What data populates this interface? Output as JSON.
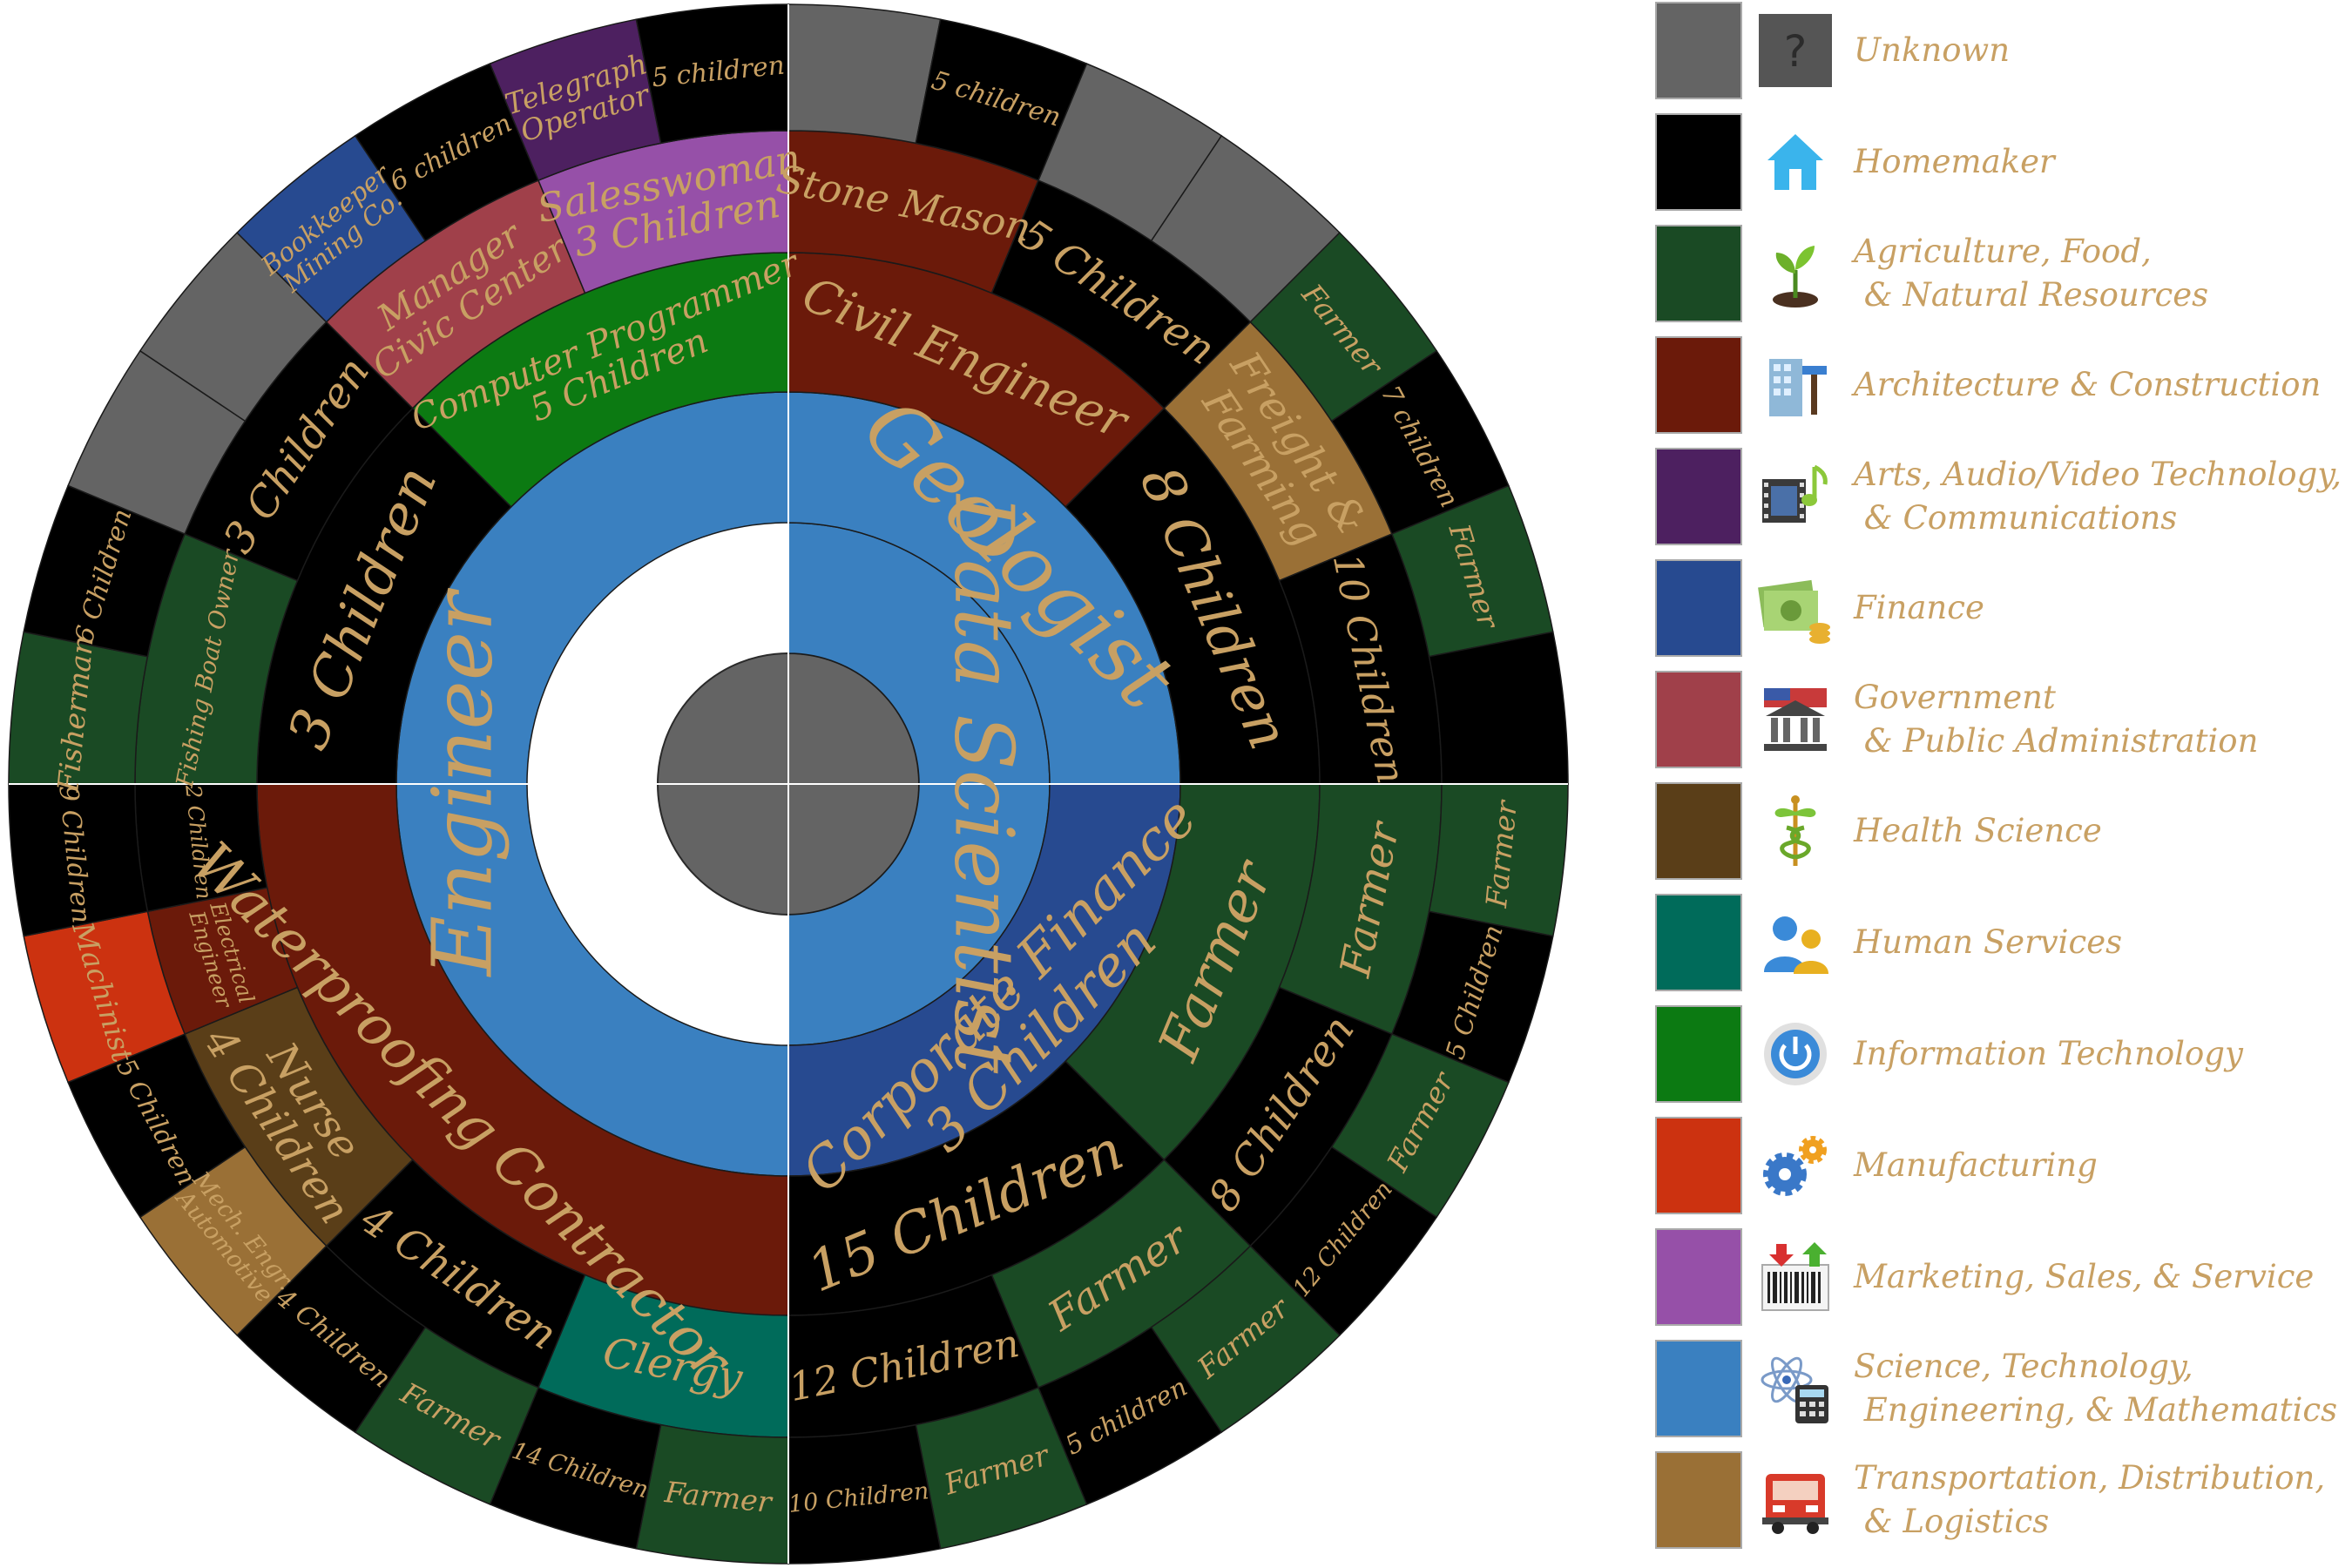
{
  "colors": {
    "unknown": "#646464",
    "homemaker": "#000000",
    "agriculture": "#1a4a24",
    "architecture": "#6b1a0a",
    "arts": "#4d2060",
    "finance": "#274a90",
    "government": "#a0404a",
    "health": "#5a3e18",
    "human": "#006b5a",
    "it": "#0c7a12",
    "manufacturing": "#cc3210",
    "marketing": "#9650a8",
    "stem": "#3a80c0",
    "transport": "#9a7036",
    "text": "#c8a063",
    "center": "#646464"
  },
  "legend": [
    {
      "key": "unknown",
      "label": "Unknown",
      "icon": "question-mark-icon"
    },
    {
      "key": "homemaker",
      "label": "Homemaker",
      "icon": "house-icon"
    },
    {
      "key": "agriculture",
      "label": "Agriculture, Food,\n & Natural Resources",
      "icon": "sprout-icon"
    },
    {
      "key": "architecture",
      "label": "Architecture & Construction",
      "icon": "building-hammer-icon"
    },
    {
      "key": "arts",
      "label": "Arts, Audio/Video Technology,\n & Communications",
      "icon": "film-music-icon"
    },
    {
      "key": "finance",
      "label": "Finance",
      "icon": "money-icon"
    },
    {
      "key": "government",
      "label": "Government\n & Public Administration",
      "icon": "capitol-icon"
    },
    {
      "key": "health",
      "label": "Health Science",
      "icon": "caduceus-icon"
    },
    {
      "key": "human",
      "label": "Human Services",
      "icon": "people-icon"
    },
    {
      "key": "it",
      "label": "Information Technology",
      "icon": "power-button-icon"
    },
    {
      "key": "manufacturing",
      "label": "Manufacturing",
      "icon": "gears-icon"
    },
    {
      "key": "marketing",
      "label": "Marketing, Sales, & Service",
      "icon": "barcode-icon"
    },
    {
      "key": "stem",
      "label": "Science, Technology,\n Engineering, & Mathematics",
      "icon": "atom-calculator-icon"
    },
    {
      "key": "transport",
      "label": "Transportation, Distribution,\n & Logistics",
      "icon": "truck-icon"
    }
  ],
  "chart_data": {
    "type": "sunburst",
    "rings": [
      {
        "level": 1,
        "segments": [
          {
            "label": "Data Scientist",
            "category": "stem",
            "start": 270,
            "end": 450
          }
        ]
      },
      {
        "level": 2,
        "segments": [
          {
            "label": "Geologist",
            "category": "stem",
            "start": 270,
            "end": 360
          },
          {
            "label": "Corporate Finance\n3 Children",
            "category": "finance",
            "start": 0,
            "end": 90
          },
          {
            "label": "Engineer",
            "category": "stem",
            "start": 90,
            "end": 270
          }
        ]
      },
      {
        "level": 3,
        "segments": [
          {
            "label": "Civil Engineer",
            "category": "architecture",
            "start": 270,
            "end": 315
          },
          {
            "label": "8 Children",
            "category": "homemaker",
            "start": 315,
            "end": 360
          },
          {
            "label": "Farmer",
            "category": "agriculture",
            "start": 0,
            "end": 45
          },
          {
            "label": "15 Children",
            "category": "homemaker",
            "start": 45,
            "end": 90
          },
          {
            "label": "Waterproofing Contractor",
            "category": "architecture",
            "start": 90,
            "end": 180
          },
          {
            "label": "3 Children",
            "category": "homemaker",
            "start": 180,
            "end": 225
          },
          {
            "label": "Computer Programmer\n5 Children",
            "category": "it",
            "start": 225,
            "end": 270
          }
        ]
      },
      {
        "level": 4,
        "segments": [
          {
            "label": "Stone Mason",
            "category": "architecture",
            "start": 270,
            "end": 292.5
          },
          {
            "label": "5 Children",
            "category": "homemaker",
            "start": 292.5,
            "end": 315
          },
          {
            "label": "Freight &\nFarming",
            "category": "transport",
            "start": 315,
            "end": 337.5
          },
          {
            "label": "10 Children",
            "category": "homemaker",
            "start": 337.5,
            "end": 360
          },
          {
            "label": "Farmer",
            "category": "agriculture",
            "start": 0,
            "end": 22.5
          },
          {
            "label": "8 Children",
            "category": "homemaker",
            "start": 22.5,
            "end": 45
          },
          {
            "label": "Farmer",
            "category": "agriculture",
            "start": 45,
            "end": 67.5
          },
          {
            "label": "12 Children",
            "category": "homemaker",
            "start": 67.5,
            "end": 90
          },
          {
            "label": "Clergy",
            "category": "human",
            "start": 90,
            "end": 112.5
          },
          {
            "label": "4 Children",
            "category": "homemaker",
            "start": 112.5,
            "end": 135
          },
          {
            "label": "Nurse\n4 Children",
            "category": "health",
            "start": 135,
            "end": 157.5
          },
          {
            "label": "Electrical\nEngineer",
            "category": "architecture",
            "start": 157.5,
            "end": 168.75
          },
          {
            "label": "2 Children",
            "category": "homemaker",
            "start": 168.75,
            "end": 180
          },
          {
            "label": "Fishing Boat Owner",
            "category": "agriculture",
            "start": 180,
            "end": 202.5
          },
          {
            "label": "3 Children",
            "category": "homemaker",
            "start": 202.5,
            "end": 225
          },
          {
            "label": "Manager\nCivic Center",
            "category": "government",
            "start": 225,
            "end": 247.5
          },
          {
            "label": "Salesswoman\n3 Children",
            "category": "marketing",
            "start": 247.5,
            "end": 270
          }
        ]
      },
      {
        "level": 5,
        "segments": [
          {
            "label": "",
            "category": "unknown",
            "start": 270,
            "end": 281.25
          },
          {
            "label": "5 children",
            "category": "homemaker",
            "start": 281.25,
            "end": 292.5
          },
          {
            "label": "",
            "category": "unknown",
            "start": 292.5,
            "end": 303.75
          },
          {
            "label": "",
            "category": "unknown",
            "start": 303.75,
            "end": 315
          },
          {
            "label": "Farmer",
            "category": "agriculture",
            "start": 315,
            "end": 326.25
          },
          {
            "label": "7 children",
            "category": "homemaker",
            "start": 326.25,
            "end": 337.5
          },
          {
            "label": "Farmer",
            "category": "agriculture",
            "start": 337.5,
            "end": 348.75
          },
          {
            "label": "",
            "category": "homemaker",
            "start": 348.75,
            "end": 360
          },
          {
            "label": "Farmer",
            "category": "agriculture",
            "start": 0,
            "end": 11.25
          },
          {
            "label": "5 Children",
            "category": "homemaker",
            "start": 11.25,
            "end": 22.5
          },
          {
            "label": "Farmer",
            "category": "agriculture",
            "start": 22.5,
            "end": 33.75
          },
          {
            "label": "12 Children",
            "category": "homemaker",
            "start": 33.75,
            "end": 45
          },
          {
            "label": "Farmer",
            "category": "agriculture",
            "start": 45,
            "end": 56.25
          },
          {
            "label": "5 children",
            "category": "homemaker",
            "start": 56.25,
            "end": 67.5
          },
          {
            "label": "Farmer",
            "category": "agriculture",
            "start": 67.5,
            "end": 78.75
          },
          {
            "label": "10 Children",
            "category": "homemaker",
            "start": 78.75,
            "end": 90
          },
          {
            "label": "Farmer",
            "category": "agriculture",
            "start": 90,
            "end": 101.25
          },
          {
            "label": "14 Children",
            "category": "homemaker",
            "start": 101.25,
            "end": 112.5
          },
          {
            "label": "Farmer",
            "category": "agriculture",
            "start": 112.5,
            "end": 123.75
          },
          {
            "label": "4 Children",
            "category": "homemaker",
            "start": 123.75,
            "end": 135
          },
          {
            "label": "Mech. Engr.\nAutomotive",
            "category": "transport",
            "start": 135,
            "end": 146.25
          },
          {
            "label": "5 Children",
            "category": "homemaker",
            "start": 146.25,
            "end": 157.5
          },
          {
            "label": "Machinist",
            "category": "manufacturing",
            "start": 157.5,
            "end": 168.75
          },
          {
            "label": "9 Children",
            "category": "homemaker",
            "start": 168.75,
            "end": 180
          },
          {
            "label": "Fisherman",
            "category": "agriculture",
            "start": 180,
            "end": 191.25
          },
          {
            "label": "6 Children",
            "category": "homemaker",
            "start": 191.25,
            "end": 202.5
          },
          {
            "label": "",
            "category": "unknown",
            "start": 202.5,
            "end": 213.75
          },
          {
            "label": "",
            "category": "unknown",
            "start": 213.75,
            "end": 225
          },
          {
            "label": "Bookkeeper\nMining Co.",
            "category": "finance",
            "start": 225,
            "end": 236.25
          },
          {
            "label": "6 children",
            "category": "homemaker",
            "start": 236.25,
            "end": 247.5
          },
          {
            "label": "Telegraph\nOperator",
            "category": "arts",
            "start": 247.5,
            "end": 258.75
          },
          {
            "label": "5 children",
            "category": "homemaker",
            "start": 258.75,
            "end": 270
          }
        ]
      }
    ]
  }
}
